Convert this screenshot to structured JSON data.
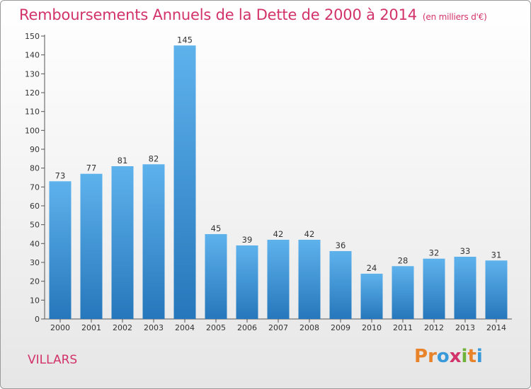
{
  "header": {
    "title": "Remboursements Annuels de la Dette de 2000 à 2014",
    "unit": "(en milliers d'€)"
  },
  "footer": {
    "commune": "VILLARS",
    "logo_text": "Proxiti"
  },
  "colors": {
    "title": "#d2336a",
    "bar_top": "#5eb2ec",
    "bar_bottom": "#2677bb",
    "logo": [
      "#e8832a",
      "#e8832a",
      "#3a9ad9",
      "#d2336a",
      "#6fb23a",
      "#e8832a",
      "#3a9ad9"
    ]
  },
  "chart_data": {
    "type": "bar",
    "title": "Remboursements Annuels de la Dette de 2000 à 2014",
    "subtitle": "(en milliers d'€)",
    "xlabel": "",
    "ylabel": "",
    "categories": [
      "2000",
      "2001",
      "2002",
      "2003",
      "2004",
      "2005",
      "2006",
      "2007",
      "2008",
      "2009",
      "2010",
      "2011",
      "2012",
      "2013",
      "2014"
    ],
    "values": [
      73,
      77,
      81,
      82,
      145,
      45,
      39,
      42,
      42,
      36,
      24,
      28,
      32,
      33,
      31
    ],
    "ylim": [
      0,
      150
    ],
    "ytick_step": 10,
    "grid": false,
    "legend": "none"
  }
}
